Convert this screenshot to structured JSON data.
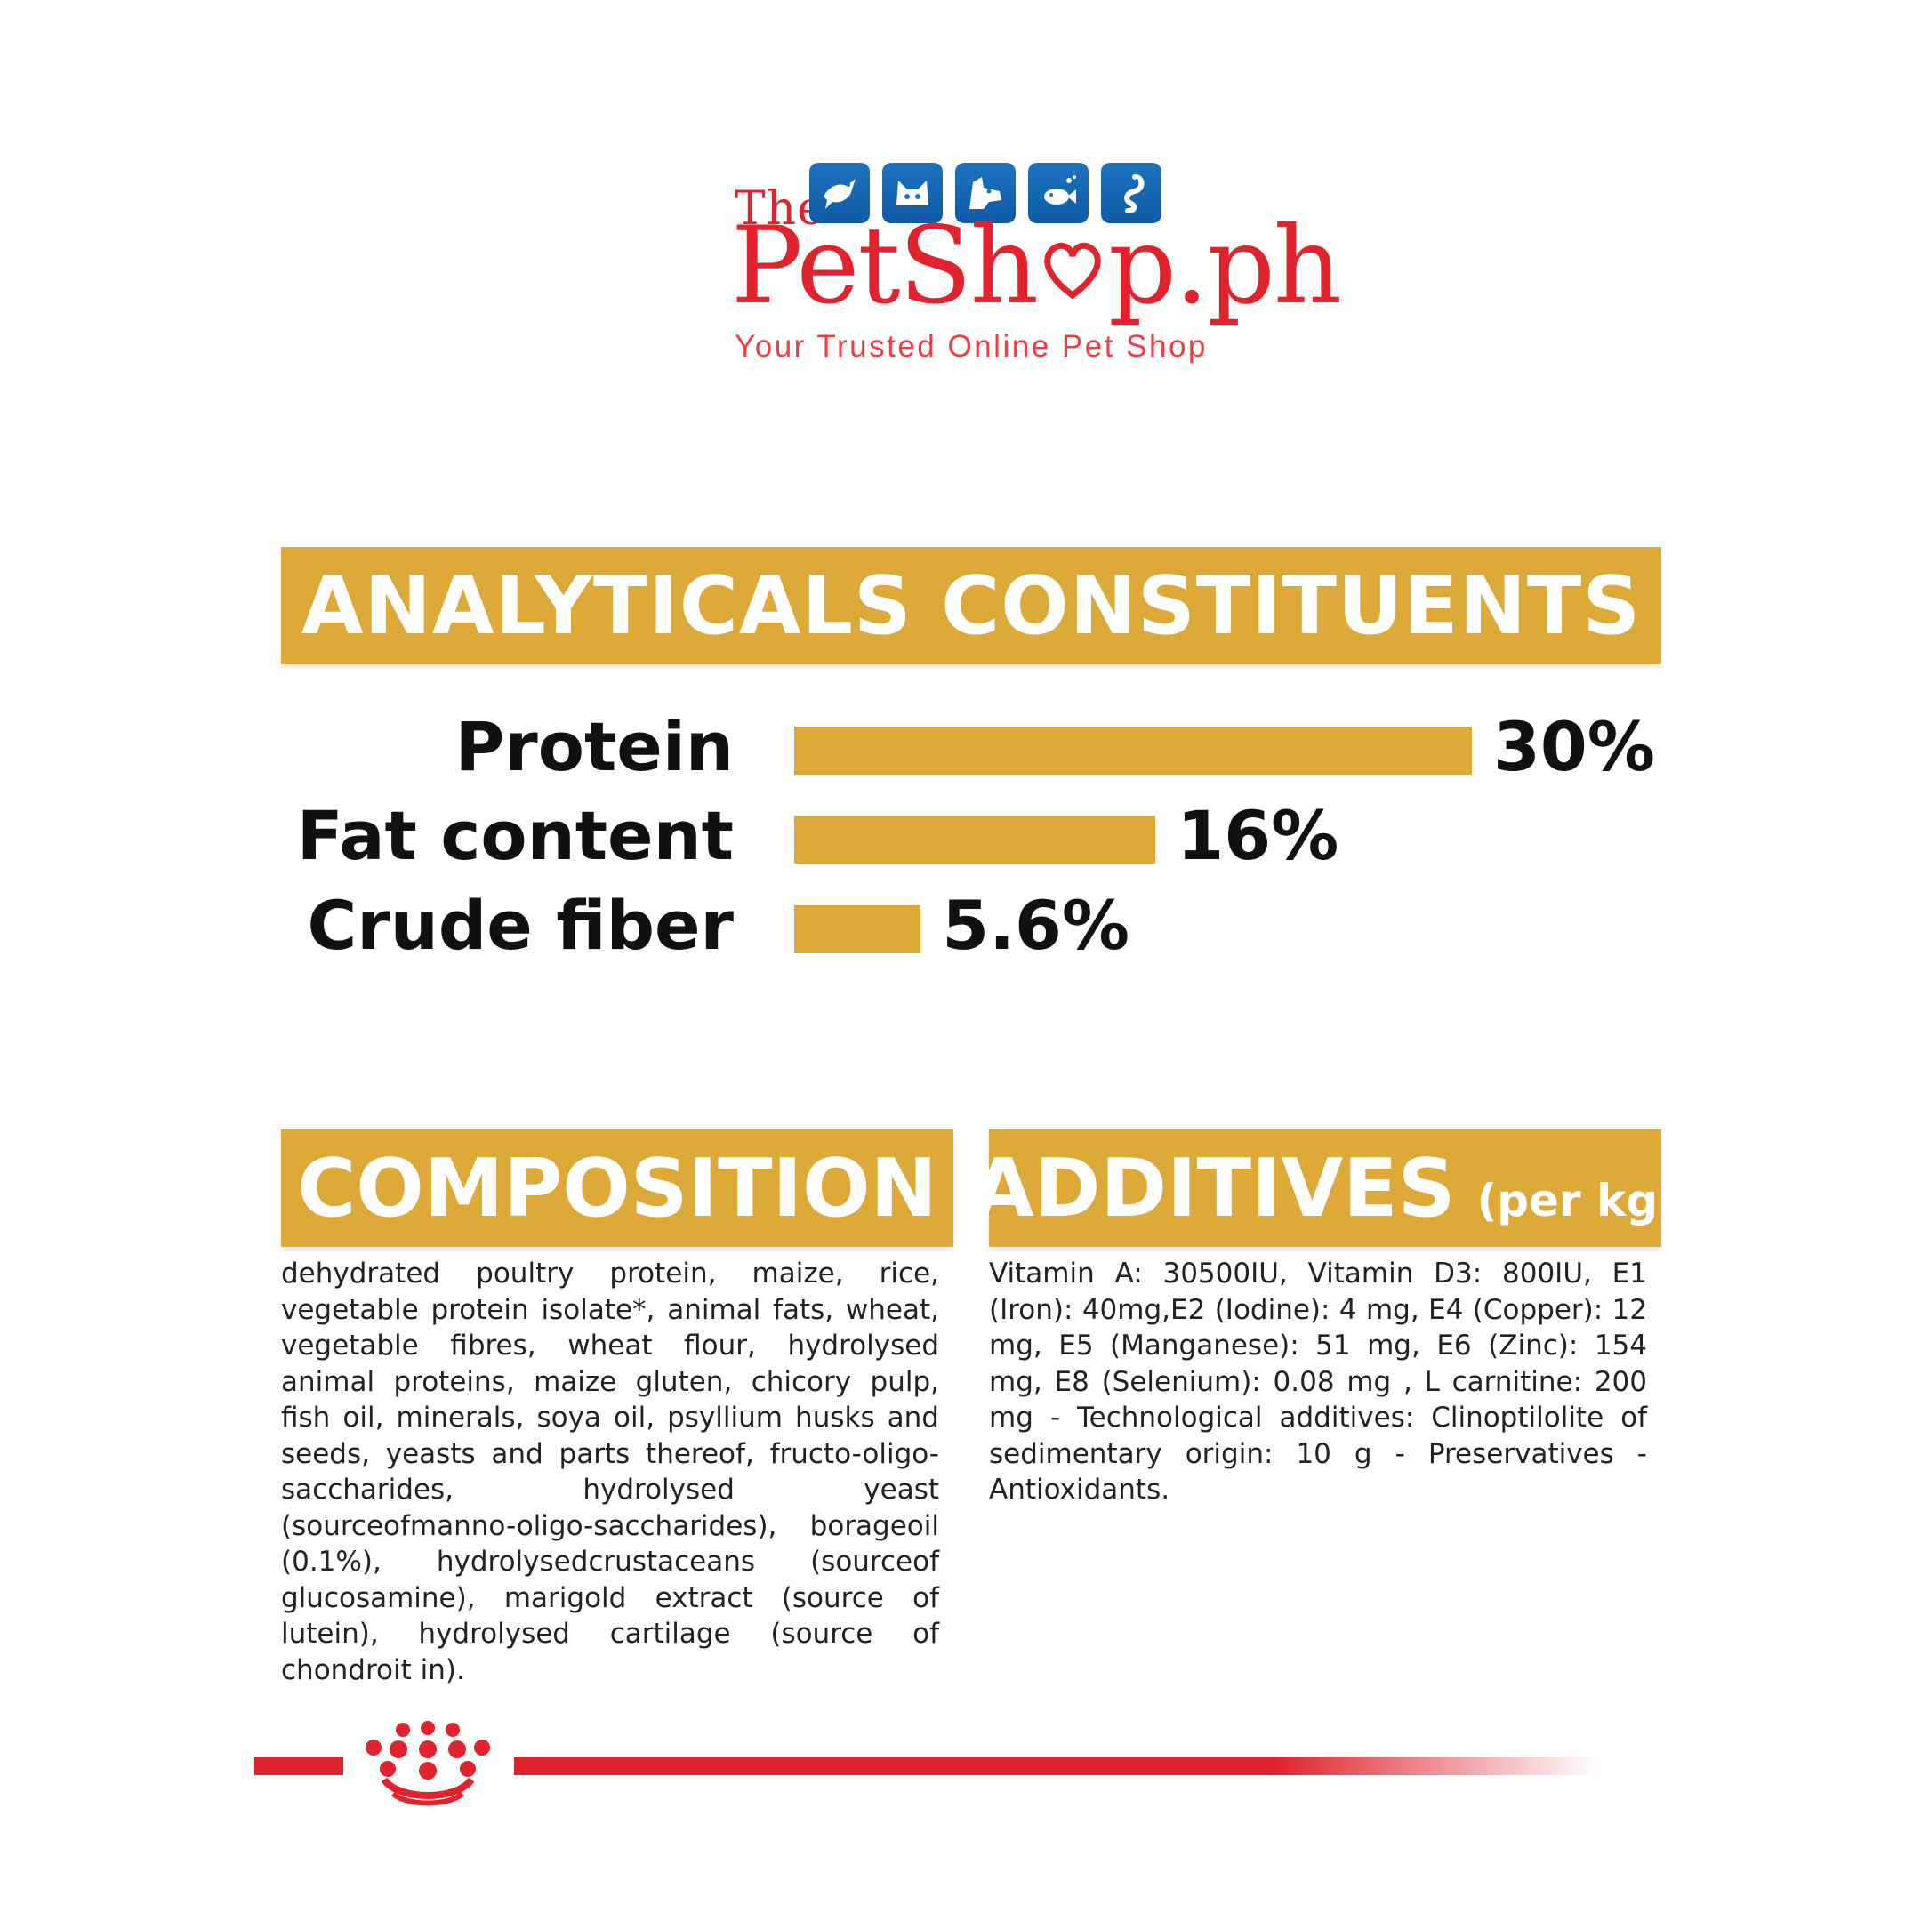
{
  "logo": {
    "the": "The",
    "brand_part1": "PetSh",
    "brand_part2": "p.ph",
    "tagline": "Your Trusted Online Pet Shop",
    "icons": [
      "bird-icon",
      "cat-icon",
      "dog-icon",
      "fish-icon",
      "snake-icon"
    ],
    "colors": {
      "brand_red": "#e0232c",
      "icon_blue": "#1e73be"
    }
  },
  "analytical": {
    "title": "ANALYTICALS CONSTITUENTS",
    "accent_color": "#ddaa3a",
    "rows": [
      {
        "label": "Protein",
        "value": "30%",
        "percent": 30
      },
      {
        "label": "Fat content",
        "value": "16%",
        "percent": 16
      },
      {
        "label": "Crude fiber",
        "value": "5.6%",
        "percent": 5.6
      }
    ]
  },
  "composition": {
    "title": "COMPOSITION",
    "text": "dehydrated poultry protein, maize, rice, vegetable protein isolate*, animal fats, wheat, vegetable fibres, wheat flour, hydrolysed animal proteins, maize gluten, chicory pulp, fish oil, minerals, soya oil, psyllium husks and seeds, yeasts and parts thereof, fructo-oligo-saccharides, hydrolysed yeast (sourceofmanno-oligo-saccharides), borageoil (0.1%), hydrolysedcrustaceans (sourceof glucosamine), marigold extract (source of lutein), hydrolysed cartilage (source of chondroit in)."
  },
  "additives": {
    "title": "ADDITIVES",
    "title_suffix": "(per kg)",
    "text": "Vitamin A: 30500IU, Vitamin D3: 800IU, E1 (Iron): 40mg,E2 (Iodine): 4 mg, E4 (Copper): 12 mg, E5 (Manganese): 51 mg, E6 (Zinc): 154 mg, E8 (Selenium): 0.08 mg , L carnitine: 200 mg - Technological additives: Clinoptilolite of sedimentary origin: 10 g - Preservatives - Antioxidants."
  },
  "footer": {
    "crown": "crown-logo-icon",
    "color": "#e0232c"
  }
}
